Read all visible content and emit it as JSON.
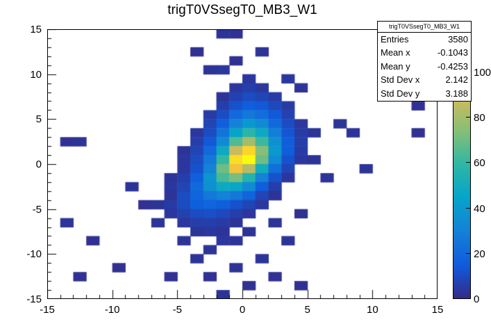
{
  "title": "trigT0VSsegT0_MB3_W1",
  "stats_box": {
    "header": "trigT0VSsegT0_MB3_W1",
    "rows": [
      {
        "label": "Entries",
        "value": "3580"
      },
      {
        "label": "Mean x",
        "value": "-0.1043"
      },
      {
        "label": "Mean y",
        "value": "-0.4253"
      },
      {
        "label": "Std Dev x",
        "value": "2.142"
      },
      {
        "label": "Std Dev y",
        "value": "3.188"
      }
    ]
  },
  "chart_data": {
    "type": "heatmap",
    "title": "trigT0VSsegT0_MB3_W1",
    "x_range": [
      -15,
      15
    ],
    "y_range": [
      -15,
      15
    ],
    "z_range": [
      0,
      119
    ],
    "bin_size": 1,
    "x_ticks": [
      -15,
      -10,
      -5,
      0,
      5,
      10,
      15
    ],
    "y_ticks": [
      -15,
      -10,
      -5,
      0,
      5,
      10,
      15
    ],
    "z_ticks": [
      0,
      20,
      40,
      60,
      80,
      100
    ],
    "grid": false,
    "legend_position": "right-colorbar",
    "palette": [
      "#352a87",
      "#0f5cdd",
      "#1481d6",
      "#06a4ca",
      "#2eb7a4",
      "#87bf77",
      "#d1bb59",
      "#fec832",
      "#f9fb0e"
    ],
    "cells": [
      [
        -2,
        14,
        3
      ],
      [
        -1,
        14,
        2
      ],
      [
        -4,
        12,
        2
      ],
      [
        1,
        12,
        3
      ],
      [
        -1,
        11,
        2
      ],
      [
        -3,
        10,
        3
      ],
      [
        -2,
        10,
        4
      ],
      [
        0,
        9,
        4
      ],
      [
        3,
        9,
        4
      ],
      [
        -1,
        8,
        4
      ],
      [
        0,
        8,
        6
      ],
      [
        1,
        8,
        4
      ],
      [
        4,
        8,
        3
      ],
      [
        -2,
        7,
        3
      ],
      [
        -1,
        7,
        7
      ],
      [
        0,
        7,
        10
      ],
      [
        1,
        7,
        8
      ],
      [
        2,
        7,
        5
      ],
      [
        -2,
        6,
        6
      ],
      [
        -1,
        6,
        12
      ],
      [
        0,
        6,
        16
      ],
      [
        1,
        6,
        14
      ],
      [
        2,
        6,
        9
      ],
      [
        3,
        6,
        5
      ],
      [
        13,
        6,
        2
      ],
      [
        -3,
        5,
        5
      ],
      [
        -2,
        5,
        10
      ],
      [
        -1,
        5,
        20
      ],
      [
        0,
        5,
        26
      ],
      [
        1,
        5,
        22
      ],
      [
        2,
        5,
        14
      ],
      [
        3,
        5,
        7
      ],
      [
        -3,
        4,
        8
      ],
      [
        -2,
        4,
        16
      ],
      [
        -1,
        4,
        30
      ],
      [
        0,
        4,
        40
      ],
      [
        1,
        4,
        34
      ],
      [
        2,
        4,
        20
      ],
      [
        3,
        4,
        10
      ],
      [
        4,
        4,
        4
      ],
      [
        7,
        4,
        3
      ],
      [
        -4,
        3,
        4
      ],
      [
        -3,
        3,
        10
      ],
      [
        -2,
        3,
        24
      ],
      [
        -1,
        3,
        45
      ],
      [
        0,
        3,
        58
      ],
      [
        1,
        3,
        48
      ],
      [
        2,
        3,
        28
      ],
      [
        3,
        3,
        13
      ],
      [
        4,
        3,
        5
      ],
      [
        5,
        3,
        3
      ],
      [
        8,
        3,
        3
      ],
      [
        13,
        3,
        2
      ],
      [
        -14,
        2,
        2
      ],
      [
        -13,
        2,
        3
      ],
      [
        -4,
        2,
        6
      ],
      [
        -3,
        2,
        14
      ],
      [
        -2,
        2,
        34
      ],
      [
        -1,
        2,
        65
      ],
      [
        0,
        2,
        80
      ],
      [
        1,
        2,
        62
      ],
      [
        2,
        2,
        36
      ],
      [
        3,
        2,
        16
      ],
      [
        4,
        2,
        6
      ],
      [
        -5,
        1,
        3
      ],
      [
        -4,
        1,
        8
      ],
      [
        -3,
        1,
        20
      ],
      [
        -2,
        1,
        48
      ],
      [
        -1,
        1,
        88
      ],
      [
        0,
        1,
        108
      ],
      [
        1,
        1,
        74
      ],
      [
        2,
        1,
        40
      ],
      [
        3,
        1,
        16
      ],
      [
        4,
        1,
        5
      ],
      [
        -5,
        0,
        4
      ],
      [
        -4,
        0,
        10
      ],
      [
        -3,
        0,
        26
      ],
      [
        -2,
        0,
        60
      ],
      [
        -1,
        0,
        110
      ],
      [
        0,
        0,
        119
      ],
      [
        1,
        0,
        70
      ],
      [
        2,
        0,
        34
      ],
      [
        3,
        0,
        12
      ],
      [
        4,
        0,
        4
      ],
      [
        5,
        0,
        3
      ],
      [
        -5,
        -1,
        4
      ],
      [
        -4,
        -1,
        12
      ],
      [
        -3,
        -1,
        30
      ],
      [
        -2,
        -1,
        70
      ],
      [
        -1,
        -1,
        100
      ],
      [
        0,
        -1,
        84
      ],
      [
        1,
        -1,
        50
      ],
      [
        2,
        -1,
        22
      ],
      [
        3,
        -1,
        8
      ],
      [
        9,
        -1,
        3
      ],
      [
        -6,
        -2,
        3
      ],
      [
        -5,
        -2,
        6
      ],
      [
        -4,
        -2,
        16
      ],
      [
        -3,
        -2,
        38
      ],
      [
        -2,
        -2,
        64
      ],
      [
        -1,
        -2,
        72
      ],
      [
        0,
        -2,
        56
      ],
      [
        1,
        -2,
        30
      ],
      [
        2,
        -2,
        12
      ],
      [
        3,
        -2,
        4
      ],
      [
        6,
        -2,
        3
      ],
      [
        -9,
        -3,
        3
      ],
      [
        -6,
        -3,
        4
      ],
      [
        -5,
        -3,
        8
      ],
      [
        -4,
        -3,
        20
      ],
      [
        -3,
        -3,
        36
      ],
      [
        -2,
        -3,
        48
      ],
      [
        -1,
        -3,
        46
      ],
      [
        0,
        -3,
        34
      ],
      [
        1,
        -3,
        16
      ],
      [
        2,
        -3,
        6
      ],
      [
        -6,
        -4,
        3
      ],
      [
        -5,
        -4,
        10
      ],
      [
        -4,
        -4,
        18
      ],
      [
        -3,
        -4,
        26
      ],
      [
        -2,
        -4,
        30
      ],
      [
        -1,
        -4,
        26
      ],
      [
        0,
        -4,
        18
      ],
      [
        1,
        -4,
        8
      ],
      [
        2,
        -4,
        3
      ],
      [
        -8,
        -5,
        2
      ],
      [
        -7,
        -5,
        3
      ],
      [
        -6,
        -5,
        5
      ],
      [
        -5,
        -5,
        10
      ],
      [
        -4,
        -5,
        16
      ],
      [
        -3,
        -5,
        18
      ],
      [
        -2,
        -5,
        16
      ],
      [
        -1,
        -5,
        12
      ],
      [
        0,
        -5,
        8
      ],
      [
        1,
        -5,
        4
      ],
      [
        -6,
        -6,
        4
      ],
      [
        -5,
        -6,
        7
      ],
      [
        -4,
        -6,
        10
      ],
      [
        -3,
        -6,
        11
      ],
      [
        -2,
        -6,
        9
      ],
      [
        -1,
        -6,
        6
      ],
      [
        0,
        -6,
        4
      ],
      [
        4,
        -6,
        2
      ],
      [
        -14,
        -7,
        3
      ],
      [
        -7,
        -7,
        3
      ],
      [
        -5,
        -7,
        4
      ],
      [
        -4,
        -7,
        6
      ],
      [
        -3,
        -7,
        6
      ],
      [
        -2,
        -7,
        5
      ],
      [
        -1,
        -7,
        3
      ],
      [
        2,
        -7,
        3
      ],
      [
        -4,
        -8,
        3
      ],
      [
        -3,
        -8,
        4
      ],
      [
        -2,
        -8,
        3
      ],
      [
        0,
        -8,
        3
      ],
      [
        -12,
        -9,
        2
      ],
      [
        -5,
        -9,
        3
      ],
      [
        -2,
        -9,
        4
      ],
      [
        -1,
        -9,
        3
      ],
      [
        3,
        -9,
        3
      ],
      [
        -3,
        -10,
        3
      ],
      [
        -4,
        -11,
        3
      ],
      [
        1,
        -11,
        3
      ],
      [
        -10,
        -12,
        2
      ],
      [
        -1,
        -12,
        3
      ],
      [
        -13,
        -13,
        2
      ],
      [
        -6,
        -13,
        2
      ],
      [
        -3,
        -13,
        2
      ],
      [
        2,
        -13,
        2
      ],
      [
        0,
        -14,
        2
      ],
      [
        4,
        -14,
        2
      ],
      [
        -2,
        -15,
        3
      ]
    ]
  }
}
